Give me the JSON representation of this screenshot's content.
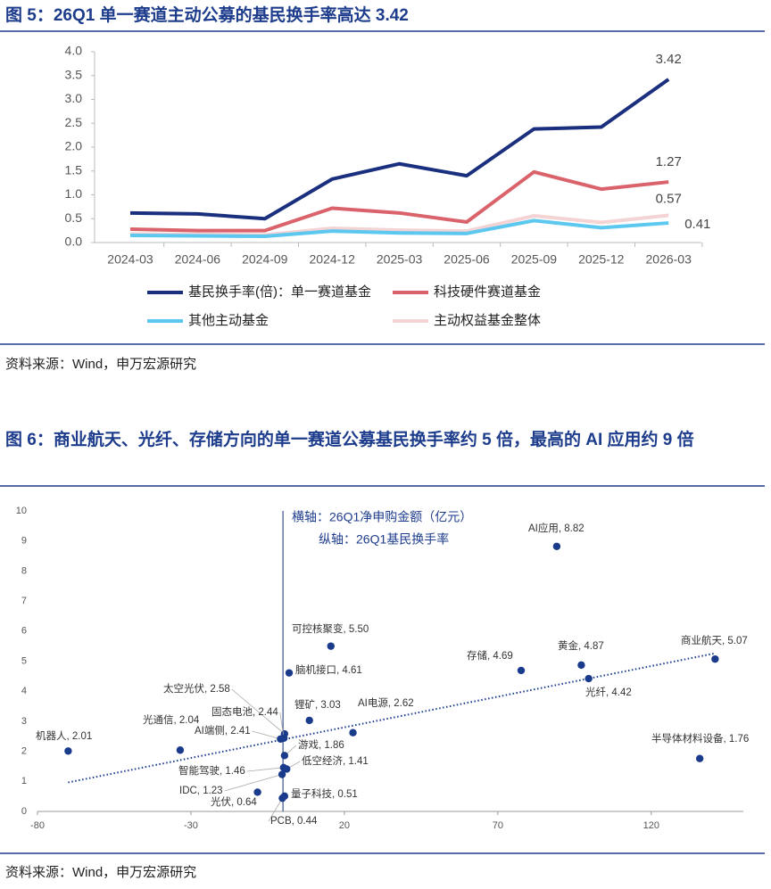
{
  "chart_data": [
    {
      "type": "line",
      "title": "图 5：26Q1 单一赛道主动公募的基民换手率高达 3.42",
      "categories": [
        "2024-03",
        "2024-06",
        "2024-09",
        "2024-12",
        "2025-03",
        "2025-06",
        "2025-09",
        "2025-12",
        "2026-03"
      ],
      "ylim": [
        0,
        4
      ],
      "yticks": [
        {
          "value": 0,
          "label": "0.0"
        },
        0.5,
        {
          "value": 1,
          "label": "1.0"
        },
        1.5,
        {
          "value": 2,
          "label": "2.0"
        },
        2.5,
        {
          "value": 3,
          "label": "3.0"
        },
        3.5,
        {
          "value": 4,
          "label": "4.0"
        }
      ],
      "legend": "bottom",
      "series": [
        {
          "name": "基民换手率(倍)：单一赛道基金",
          "color": "#1a2f7e",
          "values": [
            0.62,
            0.6,
            0.5,
            1.33,
            1.65,
            1.4,
            2.38,
            2.42,
            3.42
          ]
        },
        {
          "name": "科技硬件赛道基金",
          "color": "#d9626b",
          "values": [
            0.28,
            0.25,
            0.25,
            0.72,
            0.62,
            0.43,
            1.48,
            1.12,
            1.27
          ]
        },
        {
          "name": "其他主动基金",
          "color": "#5cc8ef",
          "values": [
            0.15,
            0.14,
            0.13,
            0.24,
            0.2,
            0.19,
            0.46,
            0.31,
            0.41
          ]
        },
        {
          "name": "主动权益基金整体",
          "color": "#f3d3d3",
          "values": [
            0.18,
            0.17,
            0.16,
            0.3,
            0.26,
            0.24,
            0.56,
            0.42,
            0.57
          ]
        }
      ]
    },
    {
      "type": "scatter",
      "title": "图 6：商业航天、光纤、存储方向的单一赛道公募基民换手率约 5 倍，最高的 AI 应用约 9 倍",
      "annotations": [
        "横轴：26Q1净申购金额（亿元）",
        "纵轴：26Q1基民换手率"
      ],
      "xlim": [
        -80,
        150
      ],
      "xticks": [
        -80,
        -30,
        20,
        70,
        120
      ],
      "ylim": [
        0,
        10
      ],
      "yticks": [
        0,
        1,
        2,
        3,
        4,
        5,
        6,
        7,
        8,
        9,
        10
      ],
      "trendline": "linear",
      "series": [
        {
          "color": "#1a3a8c",
          "x": [
            -70,
            -33.5,
            0.5,
            0.3,
            -0.8,
            0.5,
            0.2,
            1.2,
            -0.3,
            -8.3,
            -0.2,
            0.5,
            15.6,
            2,
            8.6,
            22.8,
            89.2,
            77.6,
            97.2,
            99.6,
            140.8,
            135.8
          ],
          "values": [
            2.01,
            2.04,
            2.58,
            2.44,
            2.41,
            1.86,
            1.46,
            1.41,
            1.23,
            0.64,
            0.44,
            0.51,
            5.5,
            4.61,
            3.03,
            2.62,
            8.82,
            4.69,
            4.87,
            4.42,
            5.07,
            1.76
          ],
          "value_labels": [
            "机器人, 2.01",
            "光通信, 2.04",
            "太空光伏, 2.58",
            "固态电池, 2.44",
            "AI端侧, 2.41",
            "游戏, 1.86",
            "智能驾驶, 1.46",
            "低空经济, 1.41",
            "IDC, 1.23",
            "光伏, 0.64",
            "PCB, 0.44",
            "量子科技, 0.51",
            "可控核聚变, 5.50",
            "脑机接口, 4.61",
            "锂矿, 3.03",
            "AI电源, 2.62",
            "AI应用, 8.82",
            "存储, 4.69",
            "黄金, 4.87",
            "光纤, 4.42",
            "商业航天, 5.07",
            "半导体材料设备, 1.76"
          ]
        }
      ]
    }
  ],
  "sources": [
    "资料来源：Wind，申万宏源研究",
    "资料来源：Wind，申万宏源研究"
  ]
}
